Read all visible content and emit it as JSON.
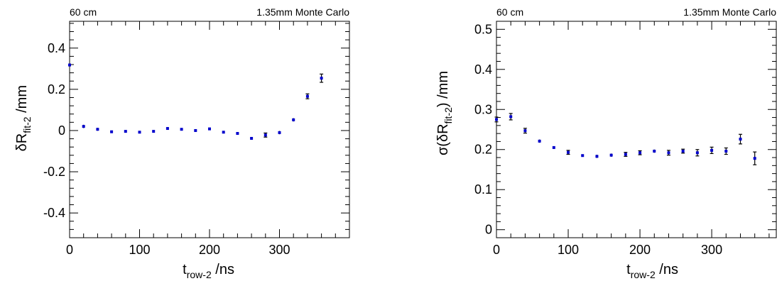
{
  "chart_data": [
    {
      "type": "scatter",
      "header_left": "60 cm",
      "header_right": "1.35mm Monte Carlo",
      "xlabel_main": "t",
      "xlabel_sub": "row-2",
      "xlabel_unit": " /ns",
      "ylabel_main": "δR",
      "ylabel_sub": "fit-2",
      "ylabel_unit": "  /mm",
      "xlim": [
        0,
        400
      ],
      "ylim": [
        -0.52,
        0.53
      ],
      "xticks": [
        0,
        100,
        200,
        300
      ],
      "xtick_labels": [
        "0",
        "100",
        "200",
        "300"
      ],
      "yticks": [
        -0.4,
        -0.2,
        0,
        0.2,
        0.4
      ],
      "ytick_labels": [
        "-0.4",
        "-0.2",
        "0",
        "0.2",
        "0.4"
      ],
      "marker_color": "#0000cc",
      "points": [
        {
          "x": 0,
          "y": 0.318,
          "err": 0.008
        },
        {
          "x": 20,
          "y": 0.02,
          "err": 0.008
        },
        {
          "x": 40,
          "y": 0.006,
          "err": 0.007
        },
        {
          "x": 60,
          "y": -0.006,
          "err": 0.004
        },
        {
          "x": 80,
          "y": -0.004,
          "err": 0.004
        },
        {
          "x": 100,
          "y": -0.008,
          "err": 0.004
        },
        {
          "x": 120,
          "y": -0.004,
          "err": 0.004
        },
        {
          "x": 140,
          "y": 0.01,
          "err": 0.004
        },
        {
          "x": 160,
          "y": 0.006,
          "err": 0.004
        },
        {
          "x": 180,
          "y": 0.0,
          "err": 0.004
        },
        {
          "x": 200,
          "y": 0.008,
          "err": 0.004
        },
        {
          "x": 220,
          "y": -0.008,
          "err": 0.004
        },
        {
          "x": 240,
          "y": -0.014,
          "err": 0.004
        },
        {
          "x": 260,
          "y": -0.038,
          "err": 0.006
        },
        {
          "x": 280,
          "y": -0.022,
          "err": 0.01
        },
        {
          "x": 300,
          "y": -0.01,
          "err": 0.008
        },
        {
          "x": 320,
          "y": 0.052,
          "err": 0.008
        },
        {
          "x": 340,
          "y": 0.166,
          "err": 0.012
        },
        {
          "x": 360,
          "y": 0.254,
          "err": 0.02
        }
      ]
    },
    {
      "type": "scatter",
      "header_left": "60 cm",
      "header_right": "1.35mm Monte Carlo",
      "xlabel_main": "t",
      "xlabel_sub": "row-2",
      "xlabel_unit": " /ns",
      "ylabel_main": "σ(δR",
      "ylabel_sub": "fit-2",
      "ylabel_unit": ")  /mm",
      "xlim": [
        0,
        390
      ],
      "ylim": [
        -0.02,
        0.52
      ],
      "xticks": [
        0,
        100,
        200,
        300
      ],
      "xtick_labels": [
        "0",
        "100",
        "200",
        "300"
      ],
      "yticks": [
        0,
        0.1,
        0.2,
        0.3,
        0.4,
        0.5
      ],
      "ytick_labels": [
        "0",
        "0.1",
        "0.2",
        "0.3",
        "0.4",
        "0.5"
      ],
      "marker_color": "#0000cc",
      "points": [
        {
          "x": 0,
          "y": 0.275,
          "err": 0.006
        },
        {
          "x": 20,
          "y": 0.282,
          "err": 0.008
        },
        {
          "x": 40,
          "y": 0.247,
          "err": 0.006
        },
        {
          "x": 60,
          "y": 0.221,
          "err": 0.004
        },
        {
          "x": 80,
          "y": 0.205,
          "err": 0.003
        },
        {
          "x": 100,
          "y": 0.193,
          "err": 0.005
        },
        {
          "x": 120,
          "y": 0.185,
          "err": 0.003
        },
        {
          "x": 140,
          "y": 0.183,
          "err": 0.004
        },
        {
          "x": 160,
          "y": 0.186,
          "err": 0.004
        },
        {
          "x": 180,
          "y": 0.188,
          "err": 0.005
        },
        {
          "x": 200,
          "y": 0.192,
          "err": 0.005
        },
        {
          "x": 220,
          "y": 0.196,
          "err": 0.004
        },
        {
          "x": 240,
          "y": 0.192,
          "err": 0.006
        },
        {
          "x": 260,
          "y": 0.196,
          "err": 0.005
        },
        {
          "x": 280,
          "y": 0.192,
          "err": 0.008
        },
        {
          "x": 300,
          "y": 0.198,
          "err": 0.008
        },
        {
          "x": 320,
          "y": 0.196,
          "err": 0.008
        },
        {
          "x": 340,
          "y": 0.226,
          "err": 0.012
        },
        {
          "x": 360,
          "y": 0.178,
          "err": 0.016
        }
      ]
    }
  ]
}
